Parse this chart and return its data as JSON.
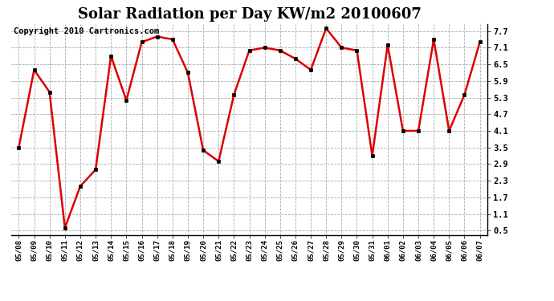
{
  "title": "Solar Radiation per Day KW/m2 20100607",
  "copyright": "Copyright 2010 Cartronics.com",
  "dates": [
    "05/08",
    "05/09",
    "05/10",
    "05/11",
    "05/12",
    "05/13",
    "05/14",
    "05/15",
    "05/16",
    "05/17",
    "05/18",
    "05/19",
    "05/20",
    "05/21",
    "05/22",
    "05/23",
    "05/24",
    "05/25",
    "05/26",
    "05/27",
    "05/28",
    "05/29",
    "05/30",
    "05/31",
    "06/01",
    "06/02",
    "06/03",
    "06/04",
    "06/05",
    "06/06",
    "06/07"
  ],
  "values": [
    3.5,
    6.3,
    5.5,
    0.6,
    2.1,
    2.7,
    6.8,
    5.2,
    7.3,
    7.5,
    7.4,
    6.2,
    3.4,
    3.0,
    5.4,
    7.0,
    7.1,
    7.0,
    6.7,
    6.3,
    7.8,
    7.1,
    7.0,
    3.2,
    7.2,
    4.1,
    4.1,
    7.4,
    4.1,
    5.4,
    7.3
  ],
  "line_color": "#dd0000",
  "marker": "s",
  "marker_size": 3,
  "bg_color": "#ffffff",
  "grid_color": "#aaaaaa",
  "yticks": [
    0.5,
    1.1,
    1.7,
    2.3,
    2.9,
    3.5,
    4.1,
    4.7,
    5.3,
    5.9,
    6.5,
    7.1,
    7.7
  ],
  "ylim": [
    0.35,
    7.95
  ],
  "title_fontsize": 13,
  "copyright_fontsize": 7.5
}
